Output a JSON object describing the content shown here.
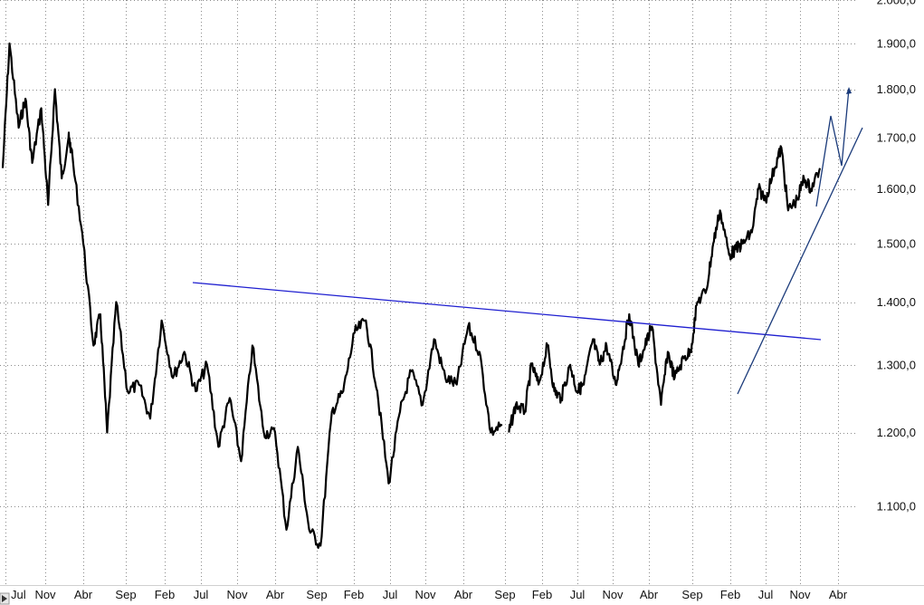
{
  "chart_data": {
    "type": "line",
    "title": "",
    "xlabel": "",
    "ylabel": "",
    "y_scale": "log",
    "ylim": [
      1030,
      2000
    ],
    "y_ticks": [
      "2.000,0",
      "1.900,0",
      "1.800,0",
      "1.700,0",
      "1.600,0",
      "1.500,0",
      "1.400,0",
      "1.300,0",
      "1.200,0",
      "1.100,0"
    ],
    "y_tick_values": [
      2000,
      1900,
      1800,
      1700,
      1600,
      1500,
      1400,
      1300,
      1200,
      1100
    ],
    "x_ticks": [
      "Jul",
      "Nov",
      "Abr",
      "Sep",
      "Feb",
      "Jul",
      "Nov",
      "Abr",
      "Sep",
      "Feb",
      "Jul",
      "Nov",
      "Abr",
      "Sep",
      "Feb",
      "Jul",
      "Nov",
      "Abr",
      "Sep",
      "Feb",
      "Jul",
      "Nov",
      "Abr"
    ],
    "grid": true,
    "grid_style": "dotted",
    "colors": {
      "price": "#000000",
      "resistance": "#1f1fd0",
      "trend": "#1a3a7a"
    },
    "series": [
      {
        "x": [
          0,
          0.3,
          0.7,
          1.0,
          1.3,
          1.7,
          2.0,
          2.3,
          2.6,
          2.9,
          3.0,
          3.5,
          4.0,
          4.3,
          4.6,
          5.0,
          5.5,
          6.0,
          6.5,
          7.0,
          7.5,
          8.0,
          8.5,
          9.0,
          9.5,
          10.0,
          10.5,
          11.0,
          11.5,
          12.0,
          12.5,
          13.0,
          13.5,
          14.0,
          14.5,
          15.0,
          15.5,
          16.0,
          16.5,
          17.0,
          17.5,
          18.0,
          18.5,
          19.0,
          19.5,
          20.0,
          20.5,
          21.0,
          21.5,
          22.0
        ],
        "y": [
          1640,
          1900,
          1720,
          1780,
          1650,
          1760,
          1570,
          1800,
          1620,
          1700,
          1680,
          1520,
          1330,
          1380,
          1200,
          1400,
          1260,
          1270,
          1220,
          1370,
          1280,
          1320,
          1260,
          1300,
          1180,
          1250,
          1160,
          1330,
          1200,
          1200,
          1070,
          1180,
          1070,
          1050,
          1230,
          1260,
          1350,
          1370,
          1260,
          1130,
          1230,
          1290,
          1240,
          1340,
          1280,
          1270,
          1360,
          1320,
          1200,
          1210
        ],
        "values": [
          1640,
          1900,
          1720,
          1780,
          1650,
          1760,
          1570,
          1800,
          1620,
          1700,
          1680,
          1520,
          1330,
          1380,
          1200,
          1400,
          1260,
          1270,
          1220,
          1370,
          1280,
          1320,
          1260,
          1300,
          1180,
          1250,
          1160,
          1330,
          1200,
          1200,
          1070,
          1180,
          1070,
          1050,
          1230,
          1260,
          1350,
          1370,
          1260,
          1130,
          1230,
          1290,
          1240,
          1340,
          1280,
          1270,
          1360,
          1320,
          1200,
          1210
        ]
      },
      {
        "x": [
          22.3,
          22.6,
          23.0,
          23.3,
          23.6,
          24.0,
          24.3,
          24.6,
          25.0,
          25.3,
          25.6,
          26.0,
          26.3,
          26.6,
          27.0,
          27.3,
          27.6,
          28.0,
          28.3,
          28.6,
          29.0,
          29.3,
          29.6,
          30.0,
          30.3,
          30.6,
          31.0,
          31.3,
          31.6,
          32.0,
          32.3,
          32.6,
          33.0,
          33.3,
          33.6,
          34.0,
          34.3,
          34.6,
          35.0,
          35.3,
          35.6,
          36.0
        ],
        "y": [
          1200,
          1240,
          1230,
          1300,
          1270,
          1330,
          1260,
          1250,
          1300,
          1260,
          1270,
          1340,
          1300,
          1330,
          1270,
          1320,
          1380,
          1300,
          1330,
          1360,
          1240,
          1320,
          1280,
          1310,
          1320,
          1400,
          1420,
          1500,
          1560,
          1480,
          1490,
          1500,
          1520,
          1600,
          1580,
          1640,
          1680,
          1560,
          1580,
          1620,
          1600,
          1640
        ],
        "values": [
          1200,
          1240,
          1230,
          1300,
          1270,
          1330,
          1260,
          1250,
          1300,
          1260,
          1270,
          1340,
          1300,
          1330,
          1270,
          1320,
          1380,
          1300,
          1330,
          1360,
          1240,
          1320,
          1280,
          1310,
          1320,
          1400,
          1420,
          1500,
          1560,
          1480,
          1490,
          1500,
          1520,
          1600,
          1580,
          1640,
          1680,
          1560,
          1580,
          1620,
          1600,
          1640
        ]
      }
    ]
  }
}
